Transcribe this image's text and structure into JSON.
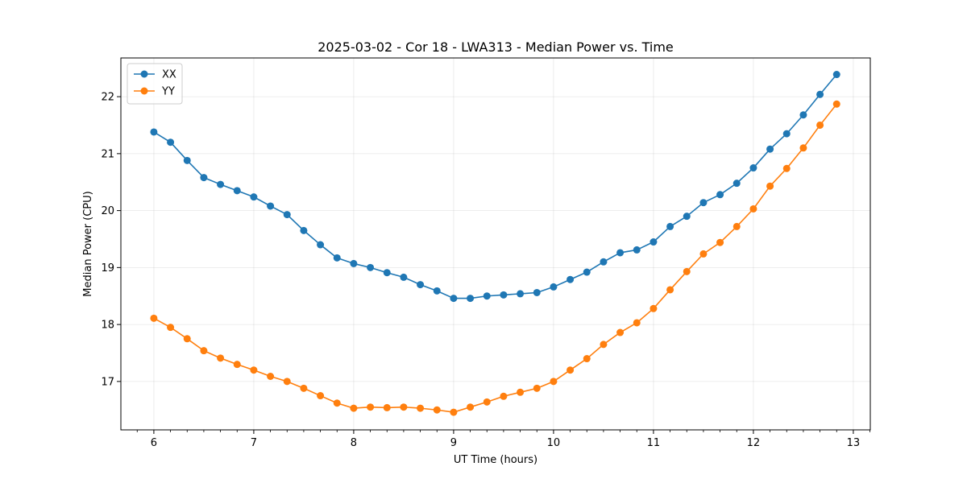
{
  "chart_data": {
    "type": "line",
    "title": "2025-03-02 - Cor 18 - LWA313 - Median Power vs. Time",
    "xlabel": "UT Time (hours)",
    "ylabel": "Median Power (CPU)",
    "xlim": [
      5.67,
      13.17
    ],
    "ylim": [
      16.15,
      22.68
    ],
    "xticks": [
      6,
      7,
      8,
      9,
      10,
      11,
      12,
      13
    ],
    "yticks": [
      17,
      18,
      19,
      20,
      21,
      22
    ],
    "grid": true,
    "legend_position": "top-left",
    "x": [
      6.0,
      6.1667,
      6.3333,
      6.5,
      6.6667,
      6.8333,
      7.0,
      7.1667,
      7.3333,
      7.5,
      7.6667,
      7.8333,
      8.0,
      8.1667,
      8.3333,
      8.5,
      8.6667,
      8.8333,
      9.0,
      9.1667,
      9.3333,
      9.5,
      9.6667,
      9.8333,
      10.0,
      10.1667,
      10.3333,
      10.5,
      10.6667,
      10.8333,
      11.0,
      11.1667,
      11.3333,
      11.5,
      11.6667,
      11.8333,
      12.0,
      12.1667,
      12.3333,
      12.5,
      12.6667,
      12.8333
    ],
    "series": [
      {
        "name": "XX",
        "color": "#1f77b4",
        "values": [
          21.38,
          21.2,
          20.88,
          20.58,
          20.46,
          20.35,
          20.24,
          20.08,
          19.93,
          19.65,
          19.4,
          19.17,
          19.07,
          19.0,
          18.91,
          18.83,
          18.7,
          18.59,
          18.46,
          18.46,
          18.5,
          18.52,
          18.54,
          18.56,
          18.66,
          18.79,
          18.92,
          19.1,
          19.26,
          19.31,
          19.45,
          19.72,
          19.9,
          20.14,
          20.28,
          20.48,
          20.75,
          21.08,
          21.35,
          21.68,
          22.04,
          22.39
        ]
      },
      {
        "name": "YY",
        "color": "#ff7f0e",
        "values": [
          18.11,
          17.95,
          17.75,
          17.54,
          17.41,
          17.3,
          17.2,
          17.09,
          17.0,
          16.88,
          16.75,
          16.62,
          16.53,
          16.55,
          16.54,
          16.55,
          16.53,
          16.5,
          16.46,
          16.55,
          16.64,
          16.74,
          16.81,
          16.88,
          17.0,
          17.2,
          17.4,
          17.65,
          17.86,
          18.03,
          18.28,
          18.61,
          18.93,
          19.24,
          19.44,
          19.72,
          20.03,
          20.43,
          20.74,
          21.1,
          21.5,
          21.87
        ]
      }
    ]
  }
}
